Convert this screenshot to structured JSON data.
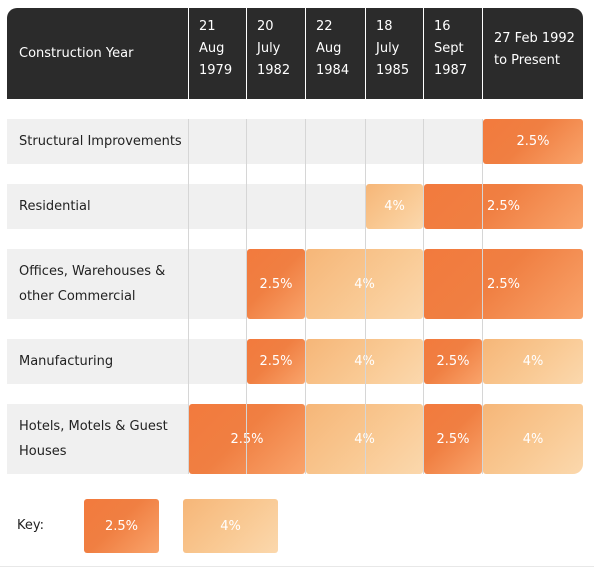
{
  "header": {
    "row_label": "Construction Year",
    "columns": [
      [
        "21",
        "Aug",
        "1979"
      ],
      [
        "20",
        "July",
        "1982"
      ],
      [
        "22",
        "Aug",
        "1984"
      ],
      [
        "18",
        "July",
        "1985"
      ],
      [
        "16",
        "Sept",
        "1987"
      ],
      [
        "27 Feb 1992",
        "to Present"
      ]
    ]
  },
  "rows": [
    {
      "label": [
        "Structural Improvements"
      ],
      "spans": [
        {
          "from": 5,
          "to": 5,
          "rate": "2.5%",
          "tone": "dark"
        }
      ]
    },
    {
      "label": [
        "Residential"
      ],
      "spans": [
        {
          "from": 3,
          "to": 3,
          "rate": "4%",
          "tone": "light"
        },
        {
          "from": 4,
          "to": 5,
          "rate": "2.5%",
          "tone": "dark"
        }
      ]
    },
    {
      "label": [
        "Offices, Warehouses &",
        "other Commercial"
      ],
      "spans": [
        {
          "from": 1,
          "to": 1,
          "rate": "2.5%",
          "tone": "dark"
        },
        {
          "from": 2,
          "to": 3,
          "rate": "4%",
          "tone": "light"
        },
        {
          "from": 4,
          "to": 5,
          "rate": "2.5%",
          "tone": "dark"
        }
      ]
    },
    {
      "label": [
        "Manufacturing"
      ],
      "spans": [
        {
          "from": 1,
          "to": 1,
          "rate": "2.5%",
          "tone": "dark"
        },
        {
          "from": 2,
          "to": 3,
          "rate": "4%",
          "tone": "light"
        },
        {
          "from": 4,
          "to": 4,
          "rate": "2.5%",
          "tone": "dark"
        },
        {
          "from": 5,
          "to": 5,
          "rate": "4%",
          "tone": "light"
        }
      ]
    },
    {
      "label": [
        "Hotels, Motels & Guest",
        "Houses"
      ],
      "spans": [
        {
          "from": 0,
          "to": 1,
          "rate": "2.5%",
          "tone": "dark"
        },
        {
          "from": 2,
          "to": 3,
          "rate": "4%",
          "tone": "light"
        },
        {
          "from": 4,
          "to": 4,
          "rate": "2.5%",
          "tone": "dark"
        },
        {
          "from": 5,
          "to": 5,
          "rate": "4%",
          "tone": "light"
        }
      ]
    }
  ],
  "key": {
    "label": "Key:",
    "items": [
      {
        "rate": "2.5%",
        "tone": "dark"
      },
      {
        "rate": "4%",
        "tone": "light"
      }
    ]
  },
  "colors": {
    "header_bg": "#2b2b2b",
    "row_bg": "#f0f0f0",
    "dark_orange": "#f27a3d",
    "light_orange": "#f9c993"
  }
}
